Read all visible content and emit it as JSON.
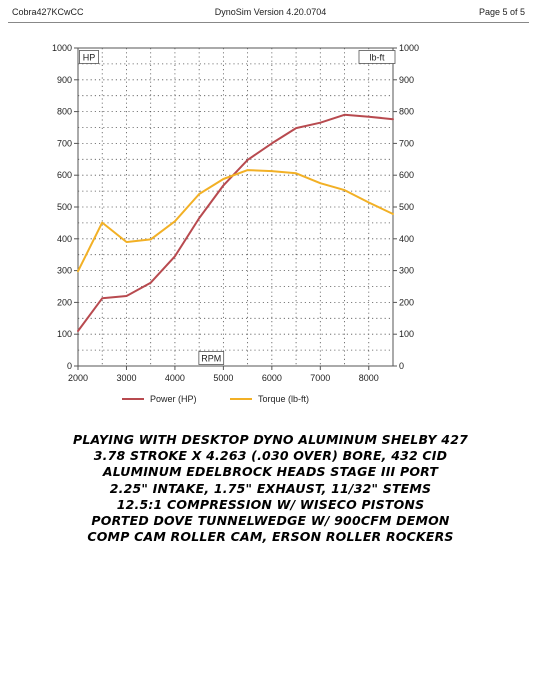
{
  "header": {
    "left": "Cobra427KCwCC",
    "center": "DynoSim  Version 4.20.0704",
    "right": "Page 5 of 5"
  },
  "chart_data": {
    "type": "line",
    "x": [
      2000,
      2500,
      3000,
      3500,
      4000,
      4500,
      5000,
      5500,
      6000,
      6500,
      7000,
      7500,
      8000,
      8500
    ],
    "xlim": [
      2000,
      8500
    ],
    "xticks": [
      "2000",
      "3000",
      "4000",
      "5000",
      "6000",
      "7000",
      "8000"
    ],
    "ylim": [
      0,
      1000
    ],
    "yticks": [
      "0",
      "100",
      "200",
      "300",
      "400",
      "500",
      "600",
      "700",
      "800",
      "900",
      "1000"
    ],
    "left_axis_label": "HP",
    "right_axis_label": "lb-ft",
    "xlabel": "RPM",
    "grid": true,
    "legend_placement": "bottom",
    "series": [
      {
        "name": "Power (HP)",
        "color": "#b84a4f",
        "values": [
          110,
          213,
          220,
          262,
          345,
          465,
          568,
          648,
          700,
          748,
          765,
          790,
          784,
          776
        ]
      },
      {
        "name": "Torque (lb-ft)",
        "color": "#f2b025",
        "values": [
          298,
          451,
          390,
          398,
          455,
          541,
          588,
          616,
          613,
          606,
          575,
          553,
          514,
          478
        ]
      }
    ]
  },
  "caption": {
    "lines": [
      "PLAYING WITH DESKTOP DYNO ALUMINUM SHELBY 427",
      "3.78 STROKE X 4.263 (.030 OVER) BORE, 432 CID",
      "ALUMINUM EDELBROCK HEADS STAGE III PORT",
      "2.25\" INTAKE, 1.75\" EXHAUST, 11/32\" STEMS",
      "12.5:1 COMPRESSION W/ WISECO PISTONS",
      "PORTED DOVE TUNNELWEDGE W/ 900CFM DEMON",
      "COMP CAM ROLLER CAM, ERSON ROLLER ROCKERS"
    ]
  }
}
